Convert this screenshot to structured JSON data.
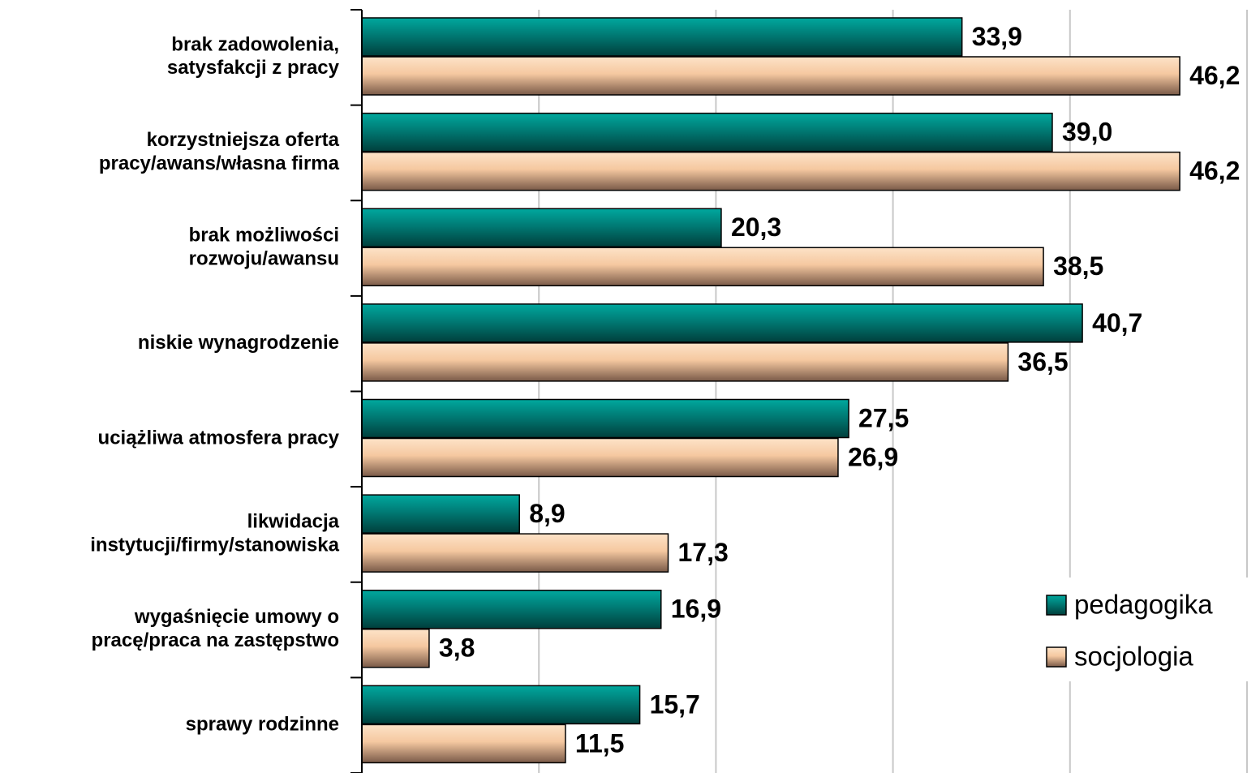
{
  "chart_data": {
    "type": "barh",
    "categories": [
      "brak zadowolenia,\nsatysfakcji z pracy",
      "korzystniejsza oferta\npracy/awans/własna firma",
      "brak możliwości\nrozwoju/awansu",
      "niskie wynagrodzenie",
      "uciążliwa atmosfera pracy",
      "likwidacja\ninstytucji/firmy/stanowiska",
      "wygaśnięcie umowy o\npracę/praca na zastępstwo",
      "sprawy rodzinne"
    ],
    "series": [
      {
        "name": "pedagogika",
        "color": "#007a74",
        "values": [
          33.9,
          39.0,
          20.3,
          40.7,
          27.5,
          8.9,
          16.9,
          15.7
        ],
        "value_labels": [
          "33,9",
          "39,0",
          "20,3",
          "40,7",
          "27,5",
          "8,9",
          "16,9",
          "15,7"
        ]
      },
      {
        "name": "socjologia",
        "color": "#f5c8a0",
        "values": [
          46.2,
          46.2,
          38.5,
          36.5,
          26.9,
          17.3,
          3.8,
          11.5
        ],
        "value_labels": [
          "46,2",
          "46,2",
          "38,5",
          "36,5",
          "26,9",
          "17,3",
          "3,8",
          "11,5"
        ]
      }
    ],
    "xlim": [
      0,
      50
    ],
    "xticks": [
      0,
      10,
      20,
      30,
      40,
      50
    ],
    "grid": true,
    "legend": "lower right"
  }
}
